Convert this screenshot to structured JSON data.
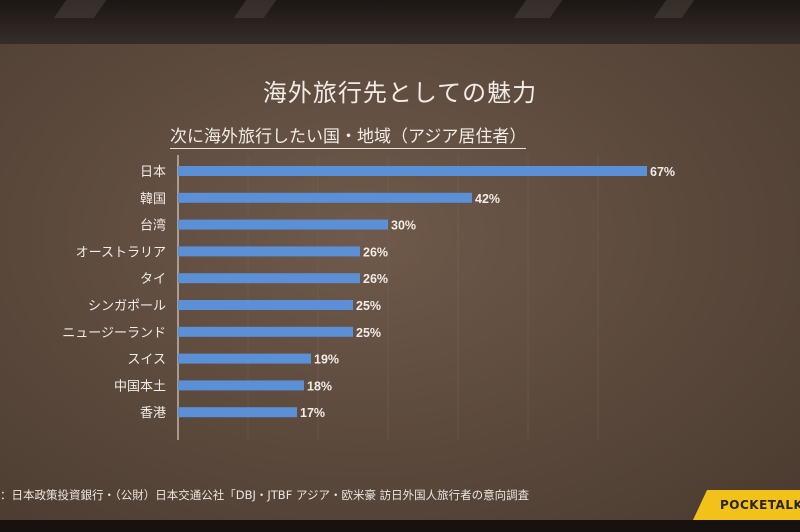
{
  "slide": {
    "title": "海外旅行先としての魅力",
    "source": "：日本政策投資銀行・（公財）日本交通公社「DBJ・JTBF アジア・欧米豪 訪日外国人旅行者の意向調査",
    "brand": "POCKETALK"
  },
  "colors": {
    "bar": "#5b8fd6",
    "text": "#f1ece7",
    "grid": "#7a6a5e",
    "accent": "#f2c21b"
  },
  "chart_data": {
    "type": "bar",
    "orientation": "horizontal",
    "title": "次に海外旅行したい国・地域（アジア居住者）",
    "categories": [
      "日本",
      "韓国",
      "台湾",
      "オーストラリア",
      "タイ",
      "シンガポール",
      "ニュージーランド",
      "スイス",
      "中国本土",
      "香港"
    ],
    "values": [
      67,
      42,
      30,
      26,
      26,
      25,
      25,
      19,
      18,
      17
    ],
    "value_labels": [
      "67%",
      "42%",
      "30%",
      "26%",
      "26%",
      "25%",
      "25%",
      "19%",
      "18%",
      "17%"
    ],
    "unit": "%",
    "xlim": [
      0,
      70
    ],
    "grid": true
  }
}
